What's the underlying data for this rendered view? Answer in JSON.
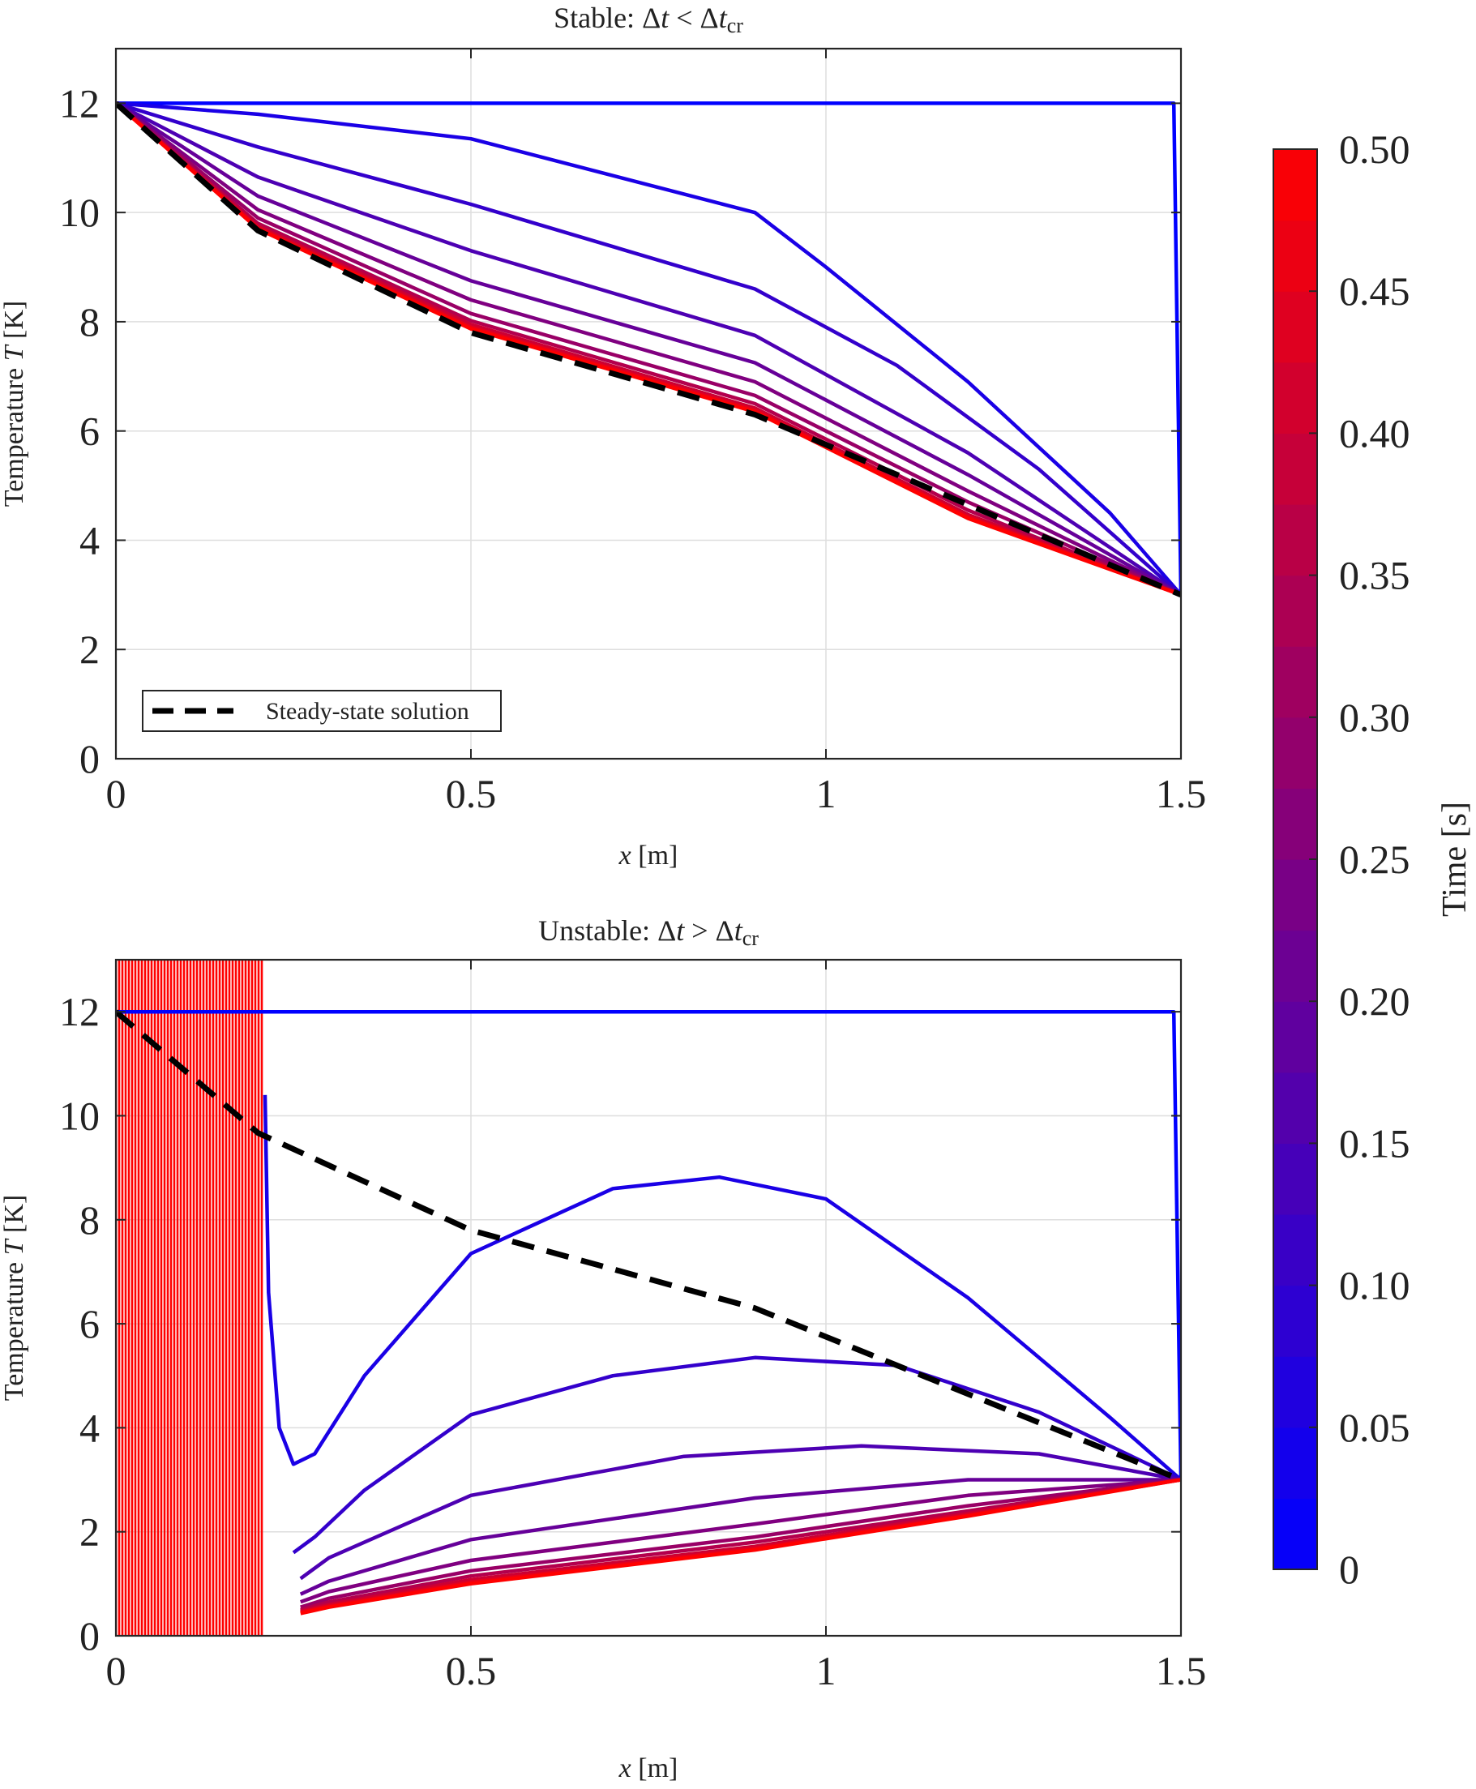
{
  "chart_data": [
    {
      "id": "top",
      "type": "line",
      "title": "Stable: Δt < Δt_cr",
      "title_parts": {
        "prefix": "Stable: ",
        "d1": "Δ",
        "t1": "t",
        "op": " < ",
        "d2": "Δ",
        "t2": "t",
        "sub": "cr"
      },
      "xlabel": {
        "var": "x",
        "unit": " [m]"
      },
      "ylabel": {
        "text": "Temperature ",
        "var": "T",
        "unit": " [K]"
      },
      "xlim": [
        0,
        1.5
      ],
      "ylim": [
        0,
        13
      ],
      "xticks": [
        0,
        0.5,
        1,
        1.5
      ],
      "xtick_labels": [
        "0",
        "0.5",
        "1",
        "1.5"
      ],
      "yticks": [
        0,
        2,
        4,
        6,
        8,
        10,
        12
      ],
      "ytick_labels": [
        "0",
        "2",
        "4",
        "6",
        "8",
        "10",
        "12"
      ],
      "grid": true,
      "legend": {
        "position": "bottom-left",
        "entries": [
          "Steady-state solution"
        ]
      },
      "steady_state": {
        "name": "Steady-state solution",
        "x": [
          0,
          0.2,
          0.5,
          0.9,
          1.5
        ],
        "y": [
          12,
          9.67,
          7.8,
          6.3,
          3
        ]
      },
      "series": [
        {
          "name": "t=0",
          "t": 0.0,
          "x": [
            0,
            0.02,
            1.49,
            1.5
          ],
          "y": [
            12,
            12,
            12,
            3
          ]
        },
        {
          "name": "t=0.05",
          "t": 0.05,
          "x": [
            0,
            0.2,
            0.5,
            0.9,
            1.0,
            1.2,
            1.4,
            1.5
          ],
          "y": [
            12,
            11.8,
            11.35,
            10.0,
            9.0,
            6.9,
            4.5,
            3
          ]
        },
        {
          "name": "t=0.1",
          "t": 0.1,
          "x": [
            0,
            0.2,
            0.5,
            0.9,
            1.1,
            1.3,
            1.5
          ],
          "y": [
            12,
            11.2,
            10.15,
            8.6,
            7.2,
            5.3,
            3
          ]
        },
        {
          "name": "t=0.15",
          "t": 0.15,
          "x": [
            0,
            0.2,
            0.5,
            0.9,
            1.2,
            1.5
          ],
          "y": [
            12,
            10.65,
            9.3,
            7.75,
            5.6,
            3
          ]
        },
        {
          "name": "t=0.2",
          "t": 0.2,
          "x": [
            0,
            0.2,
            0.5,
            0.9,
            1.2,
            1.5
          ],
          "y": [
            12,
            10.3,
            8.75,
            7.25,
            5.2,
            3
          ]
        },
        {
          "name": "t=0.25",
          "t": 0.25,
          "x": [
            0,
            0.2,
            0.5,
            0.9,
            1.2,
            1.5
          ],
          "y": [
            12,
            10.05,
            8.4,
            6.9,
            4.9,
            3
          ]
        },
        {
          "name": "t=0.3",
          "t": 0.3,
          "x": [
            0,
            0.2,
            0.5,
            0.9,
            1.2,
            1.5
          ],
          "y": [
            12,
            9.9,
            8.15,
            6.65,
            4.7,
            3
          ]
        },
        {
          "name": "t=0.35",
          "t": 0.35,
          "x": [
            0,
            0.2,
            0.5,
            0.9,
            1.2,
            1.5
          ],
          "y": [
            12,
            9.8,
            8.02,
            6.5,
            4.55,
            3
          ]
        },
        {
          "name": "t=0.4",
          "t": 0.4,
          "x": [
            0,
            0.2,
            0.5,
            0.9,
            1.2,
            1.5
          ],
          "y": [
            12,
            9.75,
            7.95,
            6.42,
            4.47,
            3
          ]
        },
        {
          "name": "t=0.45",
          "t": 0.45,
          "x": [
            0,
            0.2,
            0.5,
            0.9,
            1.2,
            1.5
          ],
          "y": [
            12,
            9.72,
            7.9,
            6.38,
            4.43,
            3
          ]
        },
        {
          "name": "t=0.5",
          "t": 0.5,
          "x": [
            0,
            0.2,
            0.5,
            0.9,
            1.2,
            1.5
          ],
          "y": [
            12,
            9.7,
            7.87,
            6.35,
            4.4,
            3
          ]
        }
      ]
    },
    {
      "id": "bottom",
      "type": "line",
      "title": "Unstable: Δt > Δt_cr",
      "title_parts": {
        "prefix": "Unstable: ",
        "d1": "Δ",
        "t1": "t",
        "op": " > ",
        "d2": "Δ",
        "t2": "t",
        "sub": "cr"
      },
      "xlabel": {
        "var": "x",
        "unit": " [m]"
      },
      "ylabel": {
        "text": "Temperature ",
        "var": "T",
        "unit": " [K]"
      },
      "xlim": [
        0,
        1.5
      ],
      "ylim": [
        0,
        13
      ],
      "xticks": [
        0,
        0.5,
        1,
        1.5
      ],
      "xtick_labels": [
        "0",
        "0.5",
        "1",
        "1.5"
      ],
      "yticks": [
        0,
        2,
        4,
        6,
        8,
        10,
        12
      ],
      "ytick_labels": [
        "0",
        "2",
        "4",
        "6",
        "8",
        "10",
        "12"
      ],
      "grid": true,
      "steady_state": {
        "name": "Steady-state solution",
        "x": [
          0,
          0.2,
          0.5,
          0.9,
          1.5
        ],
        "y": [
          12,
          9.67,
          7.8,
          6.3,
          3
        ]
      },
      "unstable_region": {
        "x_start": 0.0,
        "x_end": 0.21,
        "y_range": [
          0,
          13
        ],
        "t": 0.5,
        "note": "oscillating, clipped at axis limits"
      },
      "series": [
        {
          "name": "t=0",
          "t": 0.0,
          "x": [
            0,
            0.02,
            1.49,
            1.5
          ],
          "y": [
            12,
            12,
            12,
            3
          ]
        },
        {
          "name": "t=0.05",
          "t": 0.05,
          "x": [
            0.21,
            0.215,
            0.23,
            0.25,
            0.28,
            0.35,
            0.5,
            0.7,
            0.85,
            1.0,
            1.2,
            1.4,
            1.5
          ],
          "y": [
            10.4,
            6.6,
            4.0,
            3.3,
            3.5,
            5.0,
            7.35,
            8.6,
            8.82,
            8.4,
            6.5,
            4.2,
            3
          ]
        },
        {
          "name": "t=0.1",
          "t": 0.1,
          "x": [
            0.25,
            0.28,
            0.35,
            0.5,
            0.7,
            0.9,
            1.1,
            1.3,
            1.5
          ],
          "y": [
            1.6,
            1.9,
            2.8,
            4.25,
            5.0,
            5.35,
            5.2,
            4.3,
            3
          ]
        },
        {
          "name": "t=0.15",
          "t": 0.15,
          "x": [
            0.26,
            0.3,
            0.5,
            0.8,
            1.05,
            1.3,
            1.5
          ],
          "y": [
            1.1,
            1.5,
            2.7,
            3.45,
            3.65,
            3.5,
            3
          ]
        },
        {
          "name": "t=0.2",
          "t": 0.2,
          "x": [
            0.26,
            0.3,
            0.5,
            0.9,
            1.2,
            1.5
          ],
          "y": [
            0.8,
            1.05,
            1.85,
            2.65,
            3.0,
            3
          ]
        },
        {
          "name": "t=0.25",
          "t": 0.25,
          "x": [
            0.26,
            0.3,
            0.5,
            0.9,
            1.2,
            1.5
          ],
          "y": [
            0.65,
            0.85,
            1.45,
            2.15,
            2.7,
            3
          ]
        },
        {
          "name": "t=0.3",
          "t": 0.3,
          "x": [
            0.26,
            0.3,
            0.5,
            0.9,
            1.2,
            1.5
          ],
          "y": [
            0.55,
            0.72,
            1.25,
            1.9,
            2.5,
            3
          ]
        },
        {
          "name": "t=0.35",
          "t": 0.35,
          "x": [
            0.26,
            0.3,
            0.5,
            0.9,
            1.2,
            1.5
          ],
          "y": [
            0.5,
            0.65,
            1.15,
            1.8,
            2.4,
            3
          ]
        },
        {
          "name": "t=0.4",
          "t": 0.4,
          "x": [
            0.26,
            0.3,
            0.5,
            0.9,
            1.2,
            1.5
          ],
          "y": [
            0.47,
            0.6,
            1.08,
            1.72,
            2.35,
            3
          ]
        },
        {
          "name": "t=0.45",
          "t": 0.45,
          "x": [
            0.26,
            0.3,
            0.5,
            0.9,
            1.2,
            1.5
          ],
          "y": [
            0.45,
            0.57,
            1.03,
            1.68,
            2.32,
            3
          ]
        },
        {
          "name": "t=0.5",
          "t": 0.5,
          "x": [
            0.26,
            0.3,
            0.5,
            0.9,
            1.2,
            1.5
          ],
          "y": [
            0.43,
            0.55,
            1.0,
            1.65,
            2.3,
            3
          ]
        }
      ]
    }
  ],
  "colorbar": {
    "label": "Time [s]",
    "range": [
      0,
      0.5
    ],
    "ticks": [
      0,
      0.05,
      0.1,
      0.15,
      0.2,
      0.25,
      0.3,
      0.35,
      0.4,
      0.45,
      0.5
    ],
    "tick_labels": [
      "0",
      "0.05",
      "0.10",
      "0.15",
      "0.20",
      "0.25",
      "0.30",
      "0.35",
      "0.40",
      "0.45",
      "0.50"
    ],
    "n_bands": 20,
    "color_low": "#0000ff",
    "color_high": "#ff0000"
  }
}
